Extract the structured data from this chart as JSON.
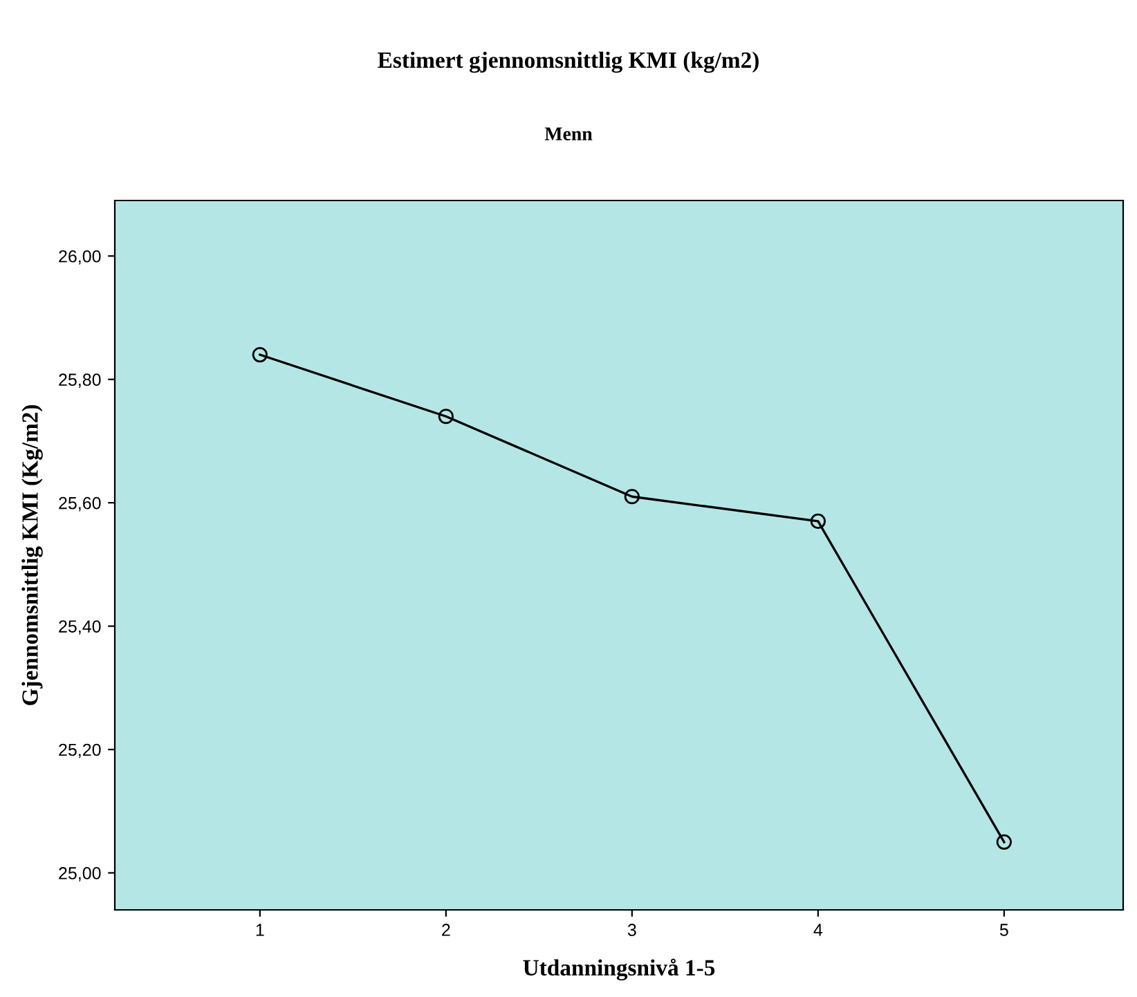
{
  "chart_data": {
    "type": "line",
    "title": "Estimert gjennomsnittlig KMI (kg/m2)",
    "subtitle": "Menn",
    "xlabel": "Utdanningsnivå 1-5",
    "ylabel": "Gjennomsnittlig KMI (Kg/m2)",
    "x": [
      1,
      2,
      3,
      4,
      5
    ],
    "series": [
      {
        "color": "#000000",
        "values": [
          25.84,
          25.74,
          25.61,
          25.57,
          25.05
        ]
      }
    ],
    "xlim": [
      0.22,
      5.64
    ],
    "xticks": [
      1,
      2,
      3,
      4,
      5
    ],
    "ylim": [
      24.94,
      26.09
    ],
    "yticks": [
      {
        "value": 25.0,
        "label": "25,00"
      },
      {
        "value": 25.2,
        "label": "25,20"
      },
      {
        "value": 25.4,
        "label": "25,40"
      },
      {
        "value": 25.6,
        "label": "25,60"
      },
      {
        "value": 25.8,
        "label": "25,80"
      },
      {
        "value": 26.0,
        "label": "26,00"
      }
    ],
    "marker": "circle",
    "line_style": "solid",
    "grid": false,
    "legend": false
  }
}
